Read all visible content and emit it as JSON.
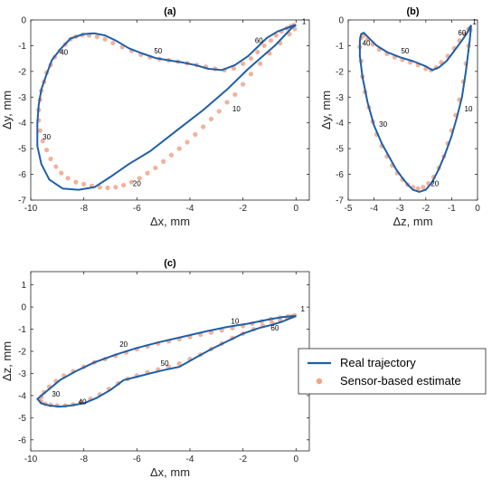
{
  "chart_data": [
    {
      "id": "a",
      "type": "line",
      "title": "(a)",
      "xlabel": "Δx, mm",
      "ylabel": "Δy, mm",
      "xlim": [
        -10,
        0.5
      ],
      "ylim": [
        -7,
        0
      ],
      "xticks": [
        -10,
        -8,
        -6,
        -4,
        -2,
        0
      ],
      "yticks": [
        0,
        -1,
        -2,
        -3,
        -4,
        -5,
        -6,
        -7
      ],
      "grid": false,
      "series": [
        {
          "name": "Real trajectory",
          "style": "line",
          "color": "#1f5fa8",
          "x": [
            0,
            -0.15,
            -0.8,
            -1.8,
            -2.6,
            -3.5,
            -4.5,
            -5.5,
            -6.3,
            -7.0,
            -7.6,
            -8.2,
            -8.8,
            -9.3,
            -9.6,
            -9.75,
            -9.75,
            -9.7,
            -9.6,
            -9.4,
            -9.2,
            -8.85,
            -8.5,
            -8.0,
            -7.6,
            -7.2,
            -6.8,
            -6.3,
            -5.8,
            -5.3,
            -4.8,
            -4.3,
            -3.8,
            -3.3,
            -2.8,
            -2.3,
            -1.8,
            -1.4,
            -1.1,
            -0.7,
            -0.3,
            -0.05,
            0
          ],
          "y": [
            -0.2,
            -0.3,
            -1.0,
            -1.9,
            -2.7,
            -3.5,
            -4.3,
            -5.1,
            -5.6,
            -6.1,
            -6.5,
            -6.6,
            -6.55,
            -6.2,
            -5.6,
            -4.9,
            -4.0,
            -3.3,
            -2.7,
            -2.1,
            -1.55,
            -1.1,
            -0.72,
            -0.55,
            -0.52,
            -0.6,
            -0.8,
            -1.1,
            -1.3,
            -1.48,
            -1.57,
            -1.65,
            -1.75,
            -1.9,
            -1.95,
            -1.75,
            -1.4,
            -1.0,
            -0.7,
            -0.45,
            -0.3,
            -0.2,
            -0.2
          ]
        },
        {
          "name": "Sensor-based estimate",
          "style": "markers",
          "color": "#f0a58a",
          "x": [
            -0.05,
            -0.25,
            -0.6,
            -1.0,
            -1.35,
            -1.7,
            -2.0,
            -2.3,
            -2.6,
            -2.9,
            -3.2,
            -3.5,
            -3.8,
            -4.1,
            -4.4,
            -4.7,
            -5.0,
            -5.3,
            -5.6,
            -5.9,
            -6.2,
            -6.5,
            -6.8,
            -7.1,
            -7.4,
            -7.7,
            -8.0,
            -8.3,
            -8.6,
            -8.85,
            -9.05,
            -9.25,
            -9.4,
            -9.55,
            -9.65,
            -9.7,
            -9.7,
            -9.65,
            -9.6,
            -9.5,
            -9.4,
            -9.25,
            -9.1,
            -8.9,
            -8.7,
            -8.5,
            -8.3,
            -8.05,
            -7.8,
            -7.5,
            -7.2,
            -6.9,
            -6.55,
            -6.2,
            -5.85,
            -5.5,
            -5.15,
            -4.8,
            -4.45,
            -4.1,
            -3.75,
            -3.4,
            -3.05,
            -2.7,
            -2.35,
            -2.0,
            -1.7,
            -1.45,
            -1.2,
            -0.95,
            -0.75,
            -0.55,
            -0.35,
            -0.2,
            -0.08
          ],
          "y": [
            -0.35,
            -0.55,
            -0.9,
            -1.3,
            -1.7,
            -2.1,
            -2.5,
            -2.9,
            -3.2,
            -3.55,
            -3.85,
            -4.15,
            -4.45,
            -4.75,
            -5.0,
            -5.25,
            -5.5,
            -5.75,
            -5.95,
            -6.15,
            -6.3,
            -6.42,
            -6.5,
            -6.52,
            -6.5,
            -6.45,
            -6.38,
            -6.3,
            -6.15,
            -5.95,
            -5.7,
            -5.4,
            -5.05,
            -4.7,
            -4.3,
            -3.9,
            -3.5,
            -3.1,
            -2.75,
            -2.4,
            -2.05,
            -1.75,
            -1.45,
            -1.2,
            -0.95,
            -0.75,
            -0.65,
            -0.58,
            -0.6,
            -0.65,
            -0.75,
            -0.9,
            -1.05,
            -1.2,
            -1.35,
            -1.45,
            -1.52,
            -1.57,
            -1.62,
            -1.68,
            -1.75,
            -1.82,
            -1.9,
            -1.95,
            -1.88,
            -1.7,
            -1.5,
            -1.25,
            -1.0,
            -0.8,
            -0.6,
            -0.45,
            -0.32,
            -0.25,
            -0.2
          ]
        }
      ],
      "annotations": [
        {
          "text": "1",
          "x": 0.3,
          "y": -0.15
        },
        {
          "text": "10",
          "x": -2.25,
          "y": -3.55
        },
        {
          "text": "20",
          "x": -6.0,
          "y": -6.45
        },
        {
          "text": "30",
          "x": -9.4,
          "y": -4.65
        },
        {
          "text": "40",
          "x": -8.75,
          "y": -1.35
        },
        {
          "text": "50",
          "x": -5.2,
          "y": -1.3
        },
        {
          "text": "60",
          "x": -1.4,
          "y": -0.9
        }
      ]
    },
    {
      "id": "b",
      "type": "line",
      "title": "(b)",
      "xlabel": "Δz, mm",
      "ylabel": "Δy, mm",
      "xlim": [
        -5,
        0
      ],
      "ylim": [
        -7,
        0
      ],
      "xticks": [
        -5,
        -4,
        -3,
        -2,
        -1,
        0
      ],
      "yticks": [
        0,
        -1,
        -2,
        -3,
        -4,
        -5,
        -6,
        -7
      ],
      "grid": false,
      "series": [
        {
          "name": "Real trajectory",
          "style": "line",
          "color": "#1f5fa8",
          "x": [
            -0.25,
            -0.3,
            -0.45,
            -0.6,
            -0.8,
            -1.0,
            -1.25,
            -1.5,
            -1.75,
            -2.0,
            -2.25,
            -2.5,
            -2.7,
            -2.9,
            -3.15,
            -3.4,
            -3.7,
            -4.0,
            -4.25,
            -4.45,
            -4.55,
            -4.55,
            -4.5,
            -4.4,
            -4.2,
            -3.9,
            -3.5,
            -3.0,
            -2.5,
            -2.0,
            -1.75,
            -1.5,
            -1.2,
            -0.9,
            -0.6,
            -0.4,
            -0.3,
            -0.25
          ],
          "y": [
            -0.2,
            -0.8,
            -2.0,
            -3.0,
            -3.8,
            -4.5,
            -5.2,
            -5.8,
            -6.3,
            -6.6,
            -6.68,
            -6.6,
            -6.4,
            -6.15,
            -5.8,
            -5.35,
            -4.8,
            -4.1,
            -3.2,
            -2.2,
            -1.4,
            -0.8,
            -0.55,
            -0.5,
            -0.7,
            -1.0,
            -1.25,
            -1.45,
            -1.6,
            -1.8,
            -1.95,
            -1.85,
            -1.6,
            -1.2,
            -0.8,
            -0.5,
            -0.3,
            -0.2
          ]
        },
        {
          "name": "Sensor-based estimate",
          "style": "markers",
          "color": "#f0a58a",
          "x": [
            -0.28,
            -0.35,
            -0.45,
            -0.55,
            -0.7,
            -0.85,
            -1.0,
            -1.15,
            -1.3,
            -1.5,
            -1.7,
            -1.9,
            -2.1,
            -2.3,
            -2.5,
            -2.7,
            -2.9,
            -3.1,
            -3.3,
            -3.5,
            -3.7,
            -3.9,
            -4.05,
            -4.2,
            -4.35,
            -4.45,
            -4.5,
            -4.55,
            -4.5,
            -4.4,
            -4.25,
            -4.05,
            -3.8,
            -3.5,
            -3.2,
            -2.9,
            -2.6,
            -2.3,
            -2.0,
            -1.8,
            -1.6,
            -1.4,
            -1.15,
            -0.9,
            -0.7,
            -0.5,
            -0.35
          ],
          "y": [
            -0.4,
            -1.0,
            -1.7,
            -2.4,
            -3.1,
            -3.7,
            -4.3,
            -4.8,
            -5.3,
            -5.75,
            -6.1,
            -6.35,
            -6.5,
            -6.55,
            -6.5,
            -6.4,
            -6.2,
            -5.95,
            -5.65,
            -5.3,
            -4.9,
            -4.45,
            -3.95,
            -3.4,
            -2.8,
            -2.2,
            -1.6,
            -1.05,
            -0.7,
            -0.6,
            -0.75,
            -0.95,
            -1.15,
            -1.32,
            -1.45,
            -1.55,
            -1.65,
            -1.75,
            -1.9,
            -1.95,
            -1.85,
            -1.65,
            -1.4,
            -1.1,
            -0.8,
            -0.55,
            -0.35
          ]
        }
      ],
      "annotations": [
        {
          "text": "1",
          "x": -0.12,
          "y": -0.18
        },
        {
          "text": "10",
          "x": -0.35,
          "y": -3.55
        },
        {
          "text": "20",
          "x": -1.65,
          "y": -6.45
        },
        {
          "text": "30",
          "x": -3.65,
          "y": -4.15
        },
        {
          "text": "40",
          "x": -4.3,
          "y": -1.0
        },
        {
          "text": "50",
          "x": -2.8,
          "y": -1.3
        },
        {
          "text": "60",
          "x": -0.6,
          "y": -0.6
        }
      ]
    },
    {
      "id": "c",
      "type": "line",
      "title": "(c)",
      "xlabel": "Δx, mm",
      "ylabel": "Δz, mm",
      "xlim": [
        -10,
        0.5
      ],
      "ylim": [
        -6.5,
        1.6
      ],
      "xticks": [
        -10,
        -8,
        -6,
        -4,
        -2,
        0
      ],
      "yticks": [
        1,
        0,
        -1,
        -2,
        -3,
        -4,
        -5,
        -6
      ],
      "grid": false,
      "series": [
        {
          "name": "Real trajectory",
          "style": "line",
          "color": "#1f5fa8",
          "x": [
            0,
            -0.5,
            -1.0,
            -1.8,
            -2.6,
            -3.4,
            -4.3,
            -5.2,
            -6.0,
            -6.8,
            -7.6,
            -8.3,
            -8.9,
            -9.3,
            -9.6,
            -9.75,
            -9.6,
            -9.3,
            -8.9,
            -8.5,
            -8.0,
            -7.5,
            -7.0,
            -6.5,
            -6.0,
            -5.5,
            -5.0,
            -4.4,
            -3.8,
            -3.2,
            -2.6,
            -2.0,
            -1.4,
            -0.9,
            -0.5,
            -0.2,
            0
          ],
          "y": [
            -0.4,
            -0.45,
            -0.55,
            -0.75,
            -0.9,
            -1.1,
            -1.35,
            -1.6,
            -1.85,
            -2.15,
            -2.5,
            -2.9,
            -3.3,
            -3.7,
            -4.0,
            -4.15,
            -4.35,
            -4.45,
            -4.5,
            -4.45,
            -4.35,
            -4.1,
            -3.75,
            -3.3,
            -3.15,
            -3.0,
            -2.85,
            -2.7,
            -2.3,
            -1.9,
            -1.55,
            -1.2,
            -0.95,
            -0.8,
            -0.65,
            -0.5,
            -0.4
          ]
        },
        {
          "name": "Sensor-based estimate",
          "style": "markers",
          "color": "#f0a58a",
          "x": [
            -0.05,
            -0.3,
            -0.6,
            -0.95,
            -1.3,
            -1.65,
            -2.0,
            -2.4,
            -2.8,
            -3.2,
            -3.6,
            -4.0,
            -4.4,
            -4.8,
            -5.2,
            -5.6,
            -6.0,
            -6.4,
            -6.8,
            -7.2,
            -7.6,
            -8.0,
            -8.4,
            -8.75,
            -9.05,
            -9.3,
            -9.5,
            -9.6,
            -9.65,
            -9.6,
            -9.45,
            -9.25,
            -9.0,
            -8.7,
            -8.4,
            -8.1,
            -7.75,
            -7.4,
            -7.05,
            -6.7,
            -6.35,
            -6.0,
            -5.6,
            -5.2,
            -4.8,
            -4.4,
            -4.0,
            -3.6,
            -3.2,
            -2.8,
            -2.4,
            -2.0,
            -1.6,
            -1.25,
            -0.9,
            -0.6,
            -0.35,
            -0.15
          ],
          "y": [
            -0.38,
            -0.42,
            -0.48,
            -0.55,
            -0.65,
            -0.75,
            -0.85,
            -0.95,
            -1.05,
            -1.15,
            -1.25,
            -1.35,
            -1.45,
            -1.55,
            -1.65,
            -1.78,
            -1.9,
            -2.05,
            -2.2,
            -2.35,
            -2.5,
            -2.7,
            -2.9,
            -3.1,
            -3.35,
            -3.6,
            -3.85,
            -4.05,
            -4.2,
            -4.3,
            -4.38,
            -4.42,
            -4.45,
            -4.45,
            -4.4,
            -4.3,
            -4.15,
            -3.95,
            -3.7,
            -3.45,
            -3.25,
            -3.1,
            -2.95,
            -2.82,
            -2.7,
            -2.55,
            -2.35,
            -2.15,
            -1.9,
            -1.65,
            -1.4,
            -1.2,
            -1.0,
            -0.85,
            -0.7,
            -0.58,
            -0.48,
            -0.42
          ]
        }
      ],
      "annotations": [
        {
          "text": "1",
          "x": 0.25,
          "y": -0.2
        },
        {
          "text": "10",
          "x": -2.3,
          "y": -0.75
        },
        {
          "text": "20",
          "x": -6.5,
          "y": -1.8
        },
        {
          "text": "30",
          "x": -9.05,
          "y": -4.05
        },
        {
          "text": "40",
          "x": -8.05,
          "y": -4.4
        },
        {
          "text": "50",
          "x": -4.95,
          "y": -2.65
        },
        {
          "text": "60",
          "x": -0.8,
          "y": -1.05
        }
      ]
    }
  ],
  "legend": {
    "entries": [
      {
        "label": "Real trajectory",
        "color": "#1f5fa8",
        "style": "line"
      },
      {
        "label": "Sensor-based estimate",
        "color": "#f0a58a",
        "style": "markers"
      }
    ]
  }
}
